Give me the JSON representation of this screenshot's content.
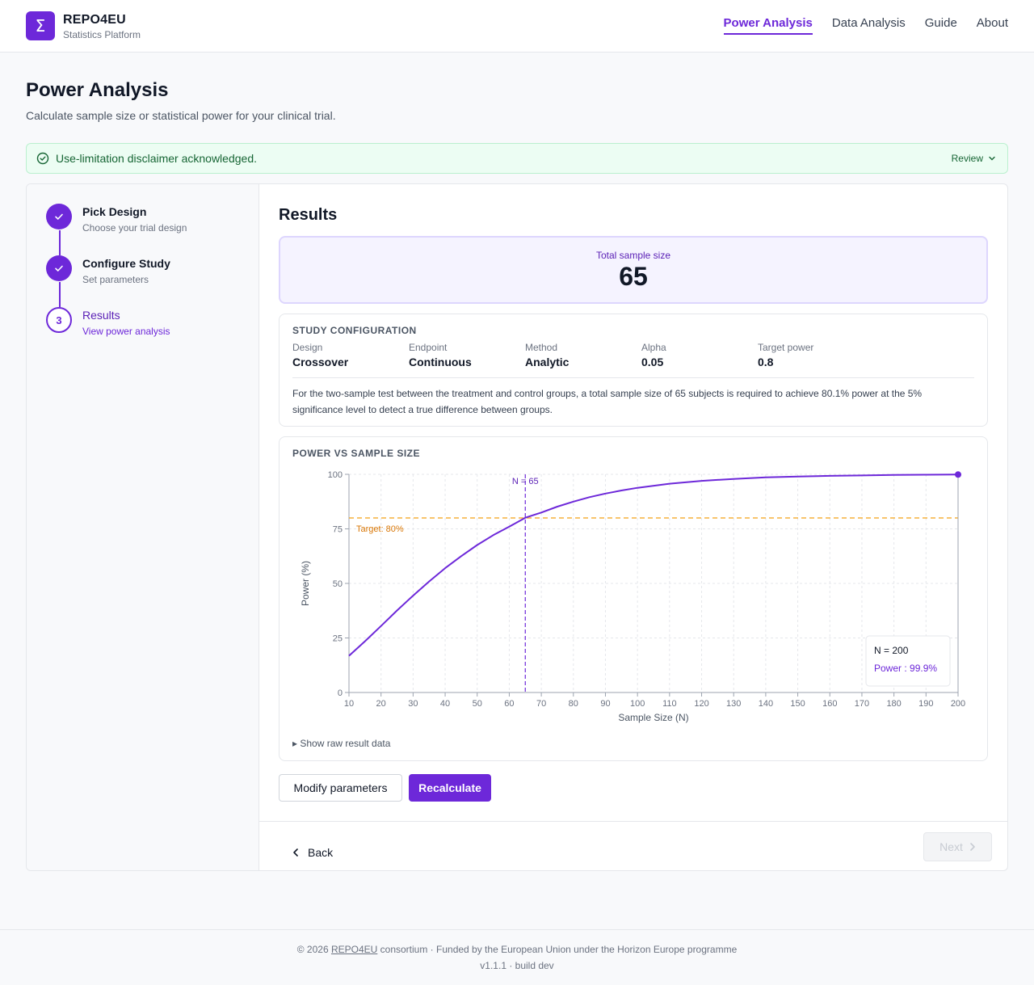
{
  "app": {
    "logo_glyph": "Σ",
    "name": "REPO4EU",
    "subtitle": "Statistics Platform"
  },
  "nav": {
    "items": [
      {
        "label": "Power Analysis",
        "active": true
      },
      {
        "label": "Data Analysis",
        "active": false
      },
      {
        "label": "Guide",
        "active": false
      },
      {
        "label": "About",
        "active": false
      }
    ]
  },
  "page": {
    "title": "Power Analysis",
    "subtitle": "Calculate sample size or statistical power for your clinical trial."
  },
  "disclaimer": {
    "text": "Use-limitation disclaimer acknowledged.",
    "review_label": "Review",
    "icon": "check-circle-icon"
  },
  "steps": [
    {
      "number": "1",
      "title": "Pick Design",
      "description": "Choose your trial design",
      "status": "done"
    },
    {
      "number": "2",
      "title": "Configure Study",
      "description": "Set parameters",
      "status": "done"
    },
    {
      "number": "3",
      "title": "Results",
      "description": "View power analysis",
      "status": "current"
    }
  ],
  "results": {
    "title": "Results",
    "total_label": "Total sample size",
    "total_value": "65"
  },
  "config": {
    "heading": "Study Configuration",
    "fields": [
      {
        "label": "Design",
        "value": "Crossover"
      },
      {
        "label": "Endpoint",
        "value": "Continuous"
      },
      {
        "label": "Method",
        "value": "Analytic"
      },
      {
        "label": "Alpha",
        "value": "0.05"
      },
      {
        "label": "Target power",
        "value": "0.8"
      }
    ],
    "summary": "For the two-sample test between the treatment and control groups, a total sample size of 65 subjects is required to achieve 80.1% power at the 5% significance level to detect a true difference between groups."
  },
  "chart": {
    "heading": "Power vs Sample Size",
    "raw_toggle": "▸ Show raw result data"
  },
  "chart_data": {
    "type": "line",
    "title": "Power vs Sample Size",
    "xlabel": "Sample Size (N)",
    "ylabel": "Power (%)",
    "xlim": [
      10,
      200
    ],
    "ylim": [
      0,
      100
    ],
    "x_ticks": [
      10,
      20,
      30,
      40,
      50,
      60,
      70,
      80,
      90,
      100,
      110,
      120,
      130,
      140,
      150,
      160,
      170,
      180,
      190,
      200
    ],
    "y_ticks": [
      0,
      25,
      50,
      75,
      100
    ],
    "grid": true,
    "series": [
      {
        "color": "#6d28d9",
        "x": [
          10,
          15,
          20,
          25,
          30,
          35,
          40,
          45,
          50,
          55,
          60,
          65,
          70,
          75,
          80,
          85,
          90,
          95,
          100,
          110,
          120,
          130,
          140,
          150,
          160,
          170,
          180,
          190,
          200
        ],
        "y": [
          16.8,
          23.5,
          30.5,
          37.6,
          44.4,
          50.9,
          57.0,
          62.5,
          67.6,
          72.1,
          76.0,
          80.1,
          82.5,
          85.2,
          87.5,
          89.5,
          91.2,
          92.6,
          93.8,
          95.7,
          97.0,
          97.9,
          98.6,
          99.0,
          99.3,
          99.5,
          99.7,
          99.8,
          99.9
        ]
      }
    ],
    "reference_lines": [
      {
        "axis": "y",
        "value": 80,
        "label": "Target: 80%",
        "color": "#f59e0b"
      },
      {
        "axis": "x",
        "value": 65,
        "label": "N = 65",
        "color": "#6d28d9"
      }
    ],
    "tooltip": {
      "x": 200,
      "title": "N = 200",
      "series_label": "Power : 99.9%"
    }
  },
  "actions": {
    "modify_label": "Modify parameters",
    "recalculate_label": "Recalculate",
    "back_label": "Back",
    "next_label": "Next"
  },
  "footer": {
    "prefix": "© 2026 ",
    "link": "REPO4EU",
    "suffix": " consortium · Funded by the European Union under the Horizon Europe programme",
    "version": "v1.1.1 · build dev"
  }
}
